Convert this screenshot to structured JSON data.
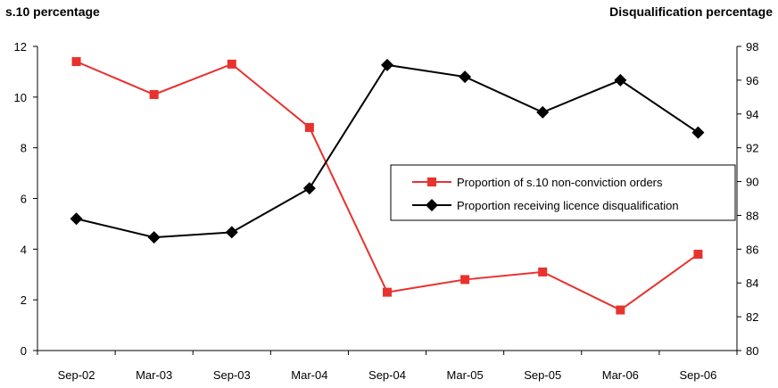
{
  "chart_data": {
    "type": "line",
    "y_left_title": "s.10 percentage",
    "y_right_title": "Disqualification percentage",
    "categories": [
      "Sep-02",
      "Mar-03",
      "Sep-03",
      "Mar-04",
      "Sep-04",
      "Mar-05",
      "Sep-05",
      "Mar-06",
      "Sep-06"
    ],
    "ylim_left": [
      0,
      12
    ],
    "yticks_left": [
      "0",
      "2",
      "4",
      "6",
      "8",
      "10",
      "12"
    ],
    "ylim_right": [
      80,
      98
    ],
    "yticks_right": [
      "80",
      "82",
      "84",
      "86",
      "88",
      "90",
      "92",
      "94",
      "96",
      "98"
    ],
    "grid": false,
    "legend_position": "right-middle",
    "series": [
      {
        "name": "Proportion of s.10 non-conviction orders",
        "axis": "left",
        "color": "#e8322e",
        "marker": "square",
        "values": [
          11.4,
          10.1,
          11.3,
          8.8,
          2.3,
          2.8,
          3.1,
          1.6,
          3.8
        ]
      },
      {
        "name": "Proportion receiving licence disqualification",
        "axis": "right",
        "color": "#000000",
        "marker": "diamond",
        "values": [
          87.8,
          86.7,
          87.0,
          89.6,
          96.9,
          96.2,
          94.1,
          96.0,
          92.9
        ]
      }
    ]
  }
}
